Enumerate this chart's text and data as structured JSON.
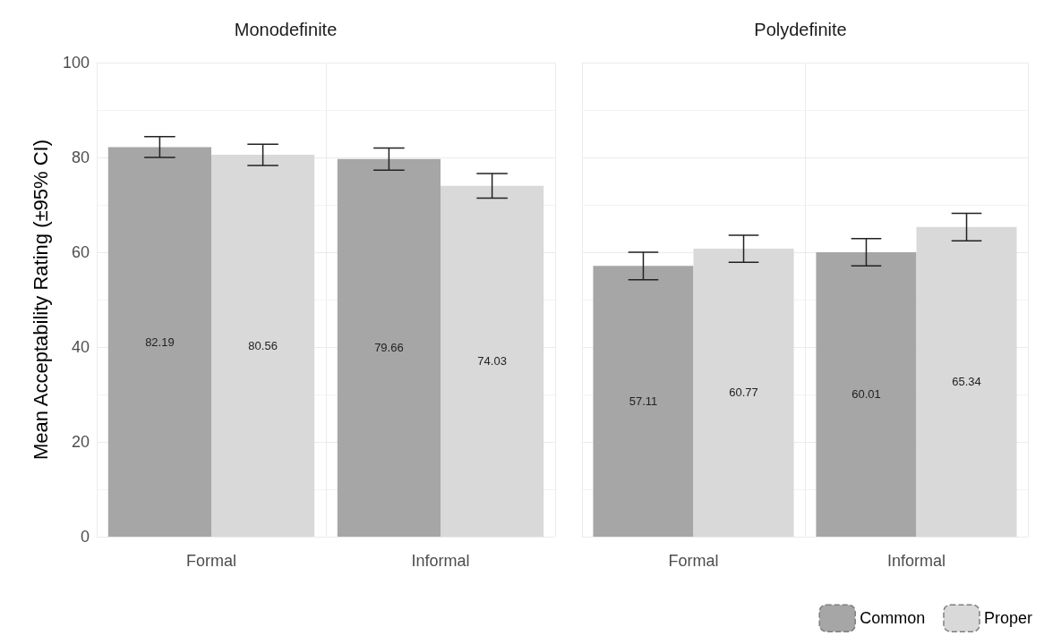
{
  "chart_data": [
    {
      "type": "bar",
      "title": "Monodefinite",
      "ylabel": "Mean Acceptability Rating (±95% CI)",
      "categories": [
        "Formal",
        "Informal"
      ],
      "series": [
        {
          "color": "#a6a6a6",
          "values": [
            82.19,
            79.66
          ],
          "errors": [
            [
              80.0,
              84.4
            ],
            [
              77.3,
              82.0
            ]
          ]
        },
        {
          "color": "#d9d9d9",
          "values": [
            80.56,
            74.03
          ],
          "errors": [
            [
              78.3,
              82.8
            ],
            [
              71.4,
              76.6
            ]
          ]
        }
      ],
      "ylim": [
        0,
        100
      ],
      "yticks": [
        0,
        20,
        40,
        60,
        80,
        100
      ],
      "grid": true,
      "data_labels": true
    },
    {
      "type": "bar",
      "title": "Polydefinite",
      "categories": [
        "Formal",
        "Informal"
      ],
      "series": [
        {
          "name": "Common",
          "color": "#a6a6a6",
          "values": [
            57.11,
            60.01
          ],
          "errors": [
            [
              54.2,
              60.0
            ],
            [
              57.1,
              62.9
            ]
          ]
        },
        {
          "name": "Proper",
          "color": "#d9d9d9",
          "values": [
            60.77,
            65.34
          ],
          "errors": [
            [
              57.9,
              63.6
            ],
            [
              62.4,
              68.2
            ]
          ]
        }
      ],
      "ylim": [
        0,
        100
      ],
      "yticks": [
        0,
        20,
        40,
        60,
        80,
        100
      ],
      "grid": true,
      "data_labels": true,
      "legend": "bottom right",
      "tick_labels": "x"
    }
  ]
}
